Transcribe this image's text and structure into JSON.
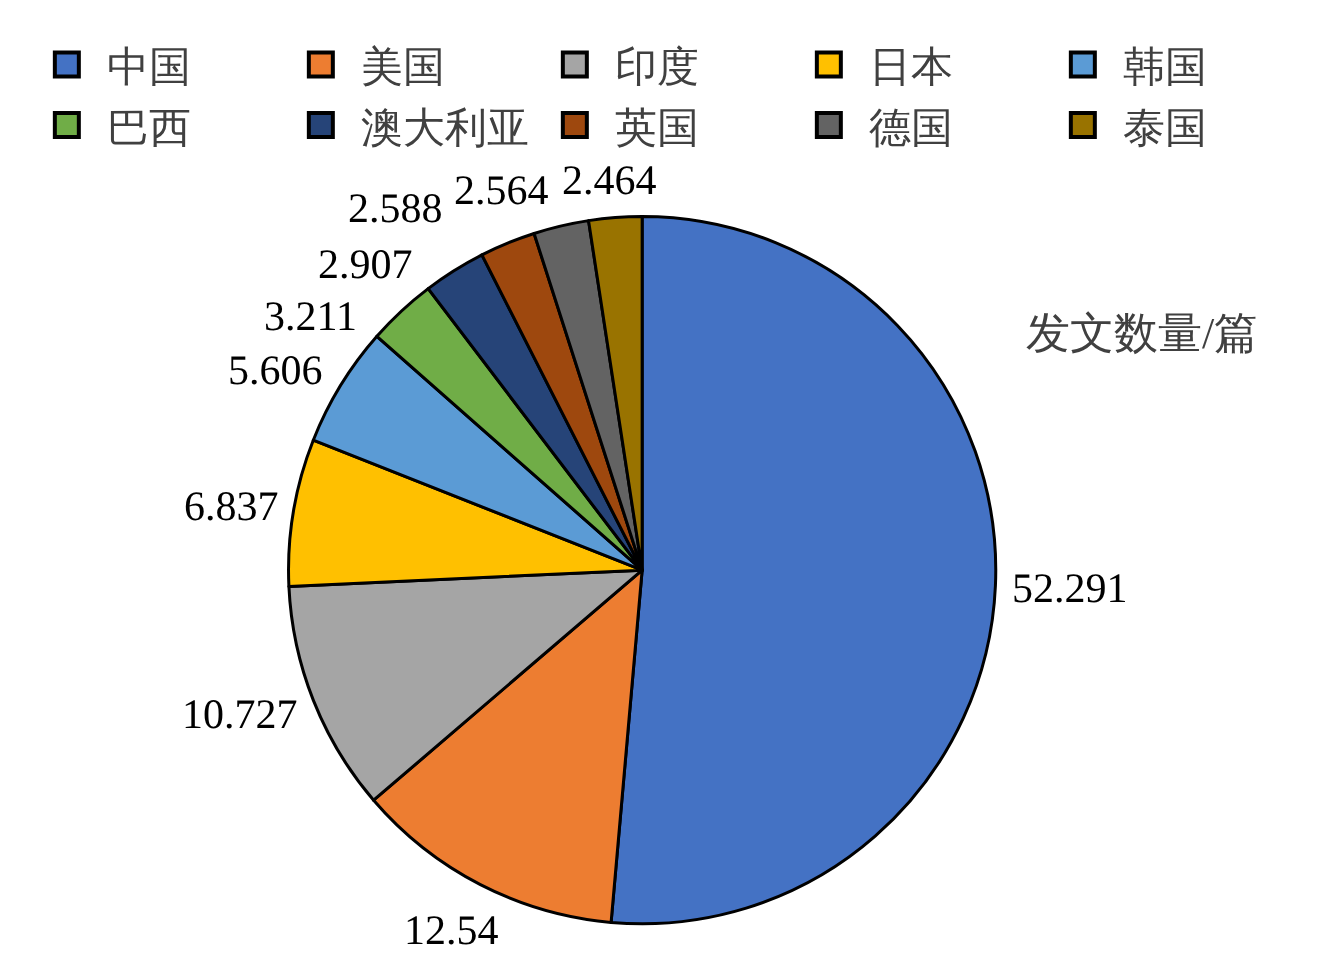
{
  "chart_data": {
    "type": "pie",
    "categories": [
      "中国",
      "美国",
      "印度",
      "日本",
      "韩国",
      "巴西",
      "澳大利亚",
      "英国",
      "德国",
      "泰国"
    ],
    "values": [
      52.291,
      12.54,
      10.727,
      6.837,
      5.606,
      3.211,
      2.907,
      2.588,
      2.564,
      2.464
    ],
    "colors": [
      "#4472c4",
      "#ed7d31",
      "#a5a5a5",
      "#ffc000",
      "#5b9bd5",
      "#70ad47",
      "#264478",
      "#9e480e",
      "#636363",
      "#997300"
    ],
    "annotations": [
      "发文数量/篇"
    ],
    "data_labels": true,
    "legend": "top"
  }
}
